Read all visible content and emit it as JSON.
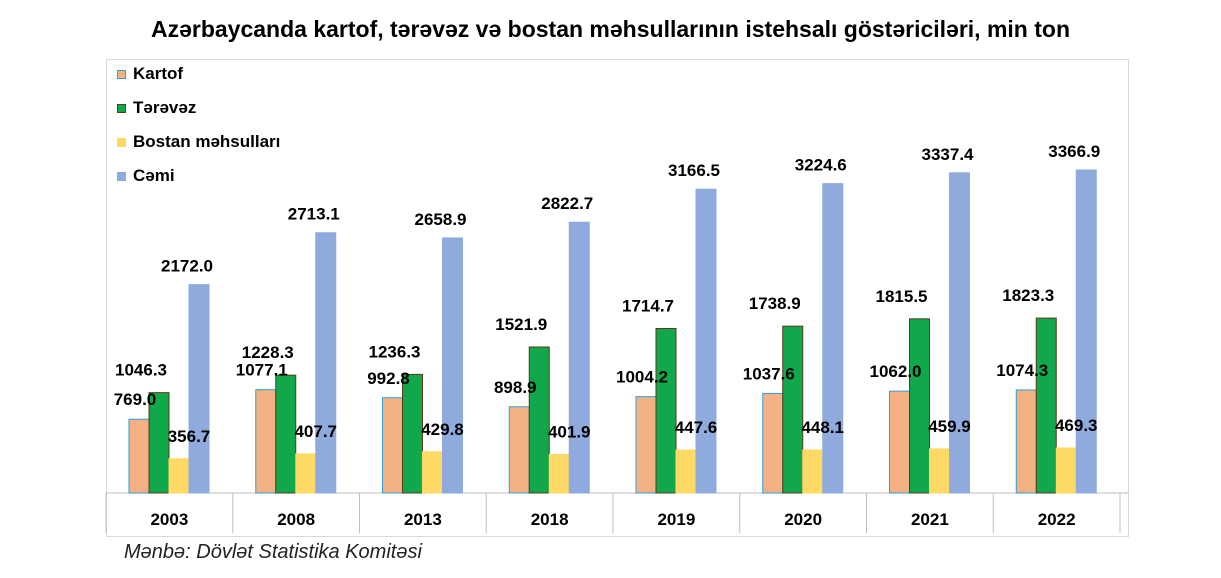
{
  "chart_data": {
    "type": "bar",
    "title": "Azərbaycanda kartof, tərəvəz və bostan məhsullarının istehsalı göstəriciləri, min ton",
    "source": "Mənbə: Dövlət Statistika Komitəsi",
    "categories": [
      "2003",
      "2008",
      "2013",
      "2018",
      "2019",
      "2020",
      "2021",
      "2022"
    ],
    "series": [
      {
        "name": "Kartof",
        "color": "#f4b183",
        "border": "#2e9fd8",
        "values": [
          769.0,
          1077.1,
          992.8,
          898.9,
          1004.2,
          1037.6,
          1062.0,
          1074.3
        ],
        "labels": [
          "769.0",
          "1077.1",
          "992.8",
          "898.9",
          "1004.2",
          "1037.6",
          "1062.0",
          "1074.3"
        ]
      },
      {
        "name": "Tərəvəz",
        "color": "#10a84a",
        "border": "#5a3a1a",
        "values": [
          1046.3,
          1228.3,
          1236.3,
          1521.9,
          1714.7,
          1738.9,
          1815.5,
          1823.3
        ],
        "labels": [
          "1046.3",
          "1228.3",
          "1236.3",
          "1521.9",
          "1714.7",
          "1738.9",
          "1815.5",
          "1823.3"
        ]
      },
      {
        "name": "Bostan məhsulları",
        "color": "#ffd966",
        "border": "#ffd966",
        "values": [
          356.7,
          407.7,
          429.8,
          401.9,
          447.6,
          448.1,
          459.9,
          469.3
        ],
        "labels": [
          "356.7",
          "407.7",
          "429.8",
          "401.9",
          "447.6",
          "448.1",
          "459.9",
          "469.3"
        ]
      },
      {
        "name": "Cəmi",
        "color": "#8faadc",
        "border": "#8faadc",
        "values": [
          2172.0,
          2713.1,
          2658.9,
          2822.7,
          3166.5,
          3224.6,
          3337.4,
          3366.9
        ],
        "labels": [
          "2172.0",
          "2713.1",
          "2658.9",
          "2822.7",
          "3166.5",
          "3224.6",
          "3337.4",
          "3366.9"
        ]
      }
    ],
    "xlabel": "",
    "ylabel": "",
    "ylim": [
      0,
      3800
    ],
    "grid": false,
    "legend_position": "top-left"
  }
}
